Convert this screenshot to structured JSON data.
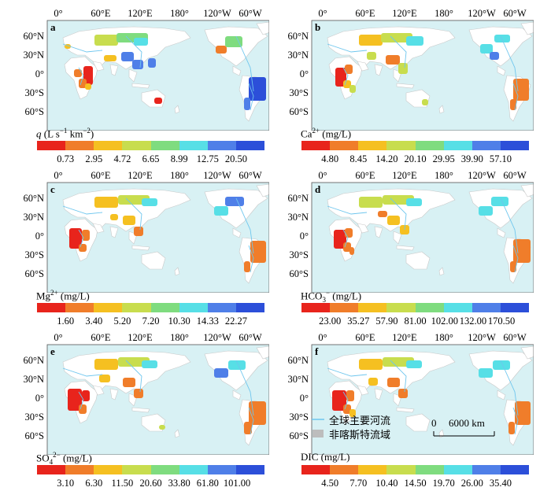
{
  "longitude_ticks": [
    "0°",
    "60°E",
    "120°E",
    "180°",
    "120°W",
    "60°W"
  ],
  "latitude_ticks": [
    "60°N",
    "30°N",
    "0°",
    "30°S",
    "60°S"
  ],
  "colors": [
    "#e8241c",
    "#f07d2a",
    "#f5c021",
    "#c8dd4e",
    "#7fdc7f",
    "#57dfe6",
    "#4f7fe8",
    "#2c4fd9"
  ],
  "panels": [
    {
      "letter": "a",
      "variable_main": "q",
      "variable_rest": " (L s",
      "unit_sup1": "−1",
      "unit_mid": " km",
      "unit_sup2": "−2",
      "unit_end": ")",
      "breaks": [
        "0.73",
        "2.95",
        "4.72",
        "6.65",
        "8.99",
        "12.75",
        "20.50"
      ]
    },
    {
      "letter": "b",
      "variable_main": "Ca",
      "variable_sup": "2+",
      "variable_rest": " (mg/L)",
      "breaks": [
        "4.80",
        "8.45",
        "14.20",
        "20.10",
        "29.95",
        "39.90",
        "57.10"
      ]
    },
    {
      "letter": "c",
      "variable_main": "Mg",
      "variable_sup": "2+",
      "variable_rest": " (mg/L)",
      "breaks": [
        "1.60",
        "3.40",
        "5.20",
        "7.20",
        "10.30",
        "14.33",
        "22.27"
      ]
    },
    {
      "letter": "d",
      "variable_main": "HCO",
      "variable_sub": "3",
      "variable_sup": "−",
      "variable_rest": " (mg/L)",
      "breaks": [
        "23.00",
        "35.27",
        "57.90",
        "81.00",
        "102.00",
        "132.00",
        "170.50"
      ]
    },
    {
      "letter": "e",
      "variable_main": "SO",
      "variable_sub": "4",
      "variable_sup": "2−",
      "variable_rest": " (mg/L)",
      "breaks": [
        "3.10",
        "6.30",
        "11.50",
        "20.60",
        "33.80",
        "61.80",
        "101.00"
      ]
    },
    {
      "letter": "f",
      "variable_main": "DIC",
      "variable_rest": " (mg/L)",
      "breaks": [
        "4.50",
        "7.70",
        "10.40",
        "14.50",
        "19.70",
        "26.00",
        "35.40"
      ]
    }
  ],
  "legend": {
    "rivers": "全球主要河流",
    "basins": "非喀斯特流域"
  },
  "scale_bar": {
    "zero": "0",
    "distance": "6000 km"
  }
}
